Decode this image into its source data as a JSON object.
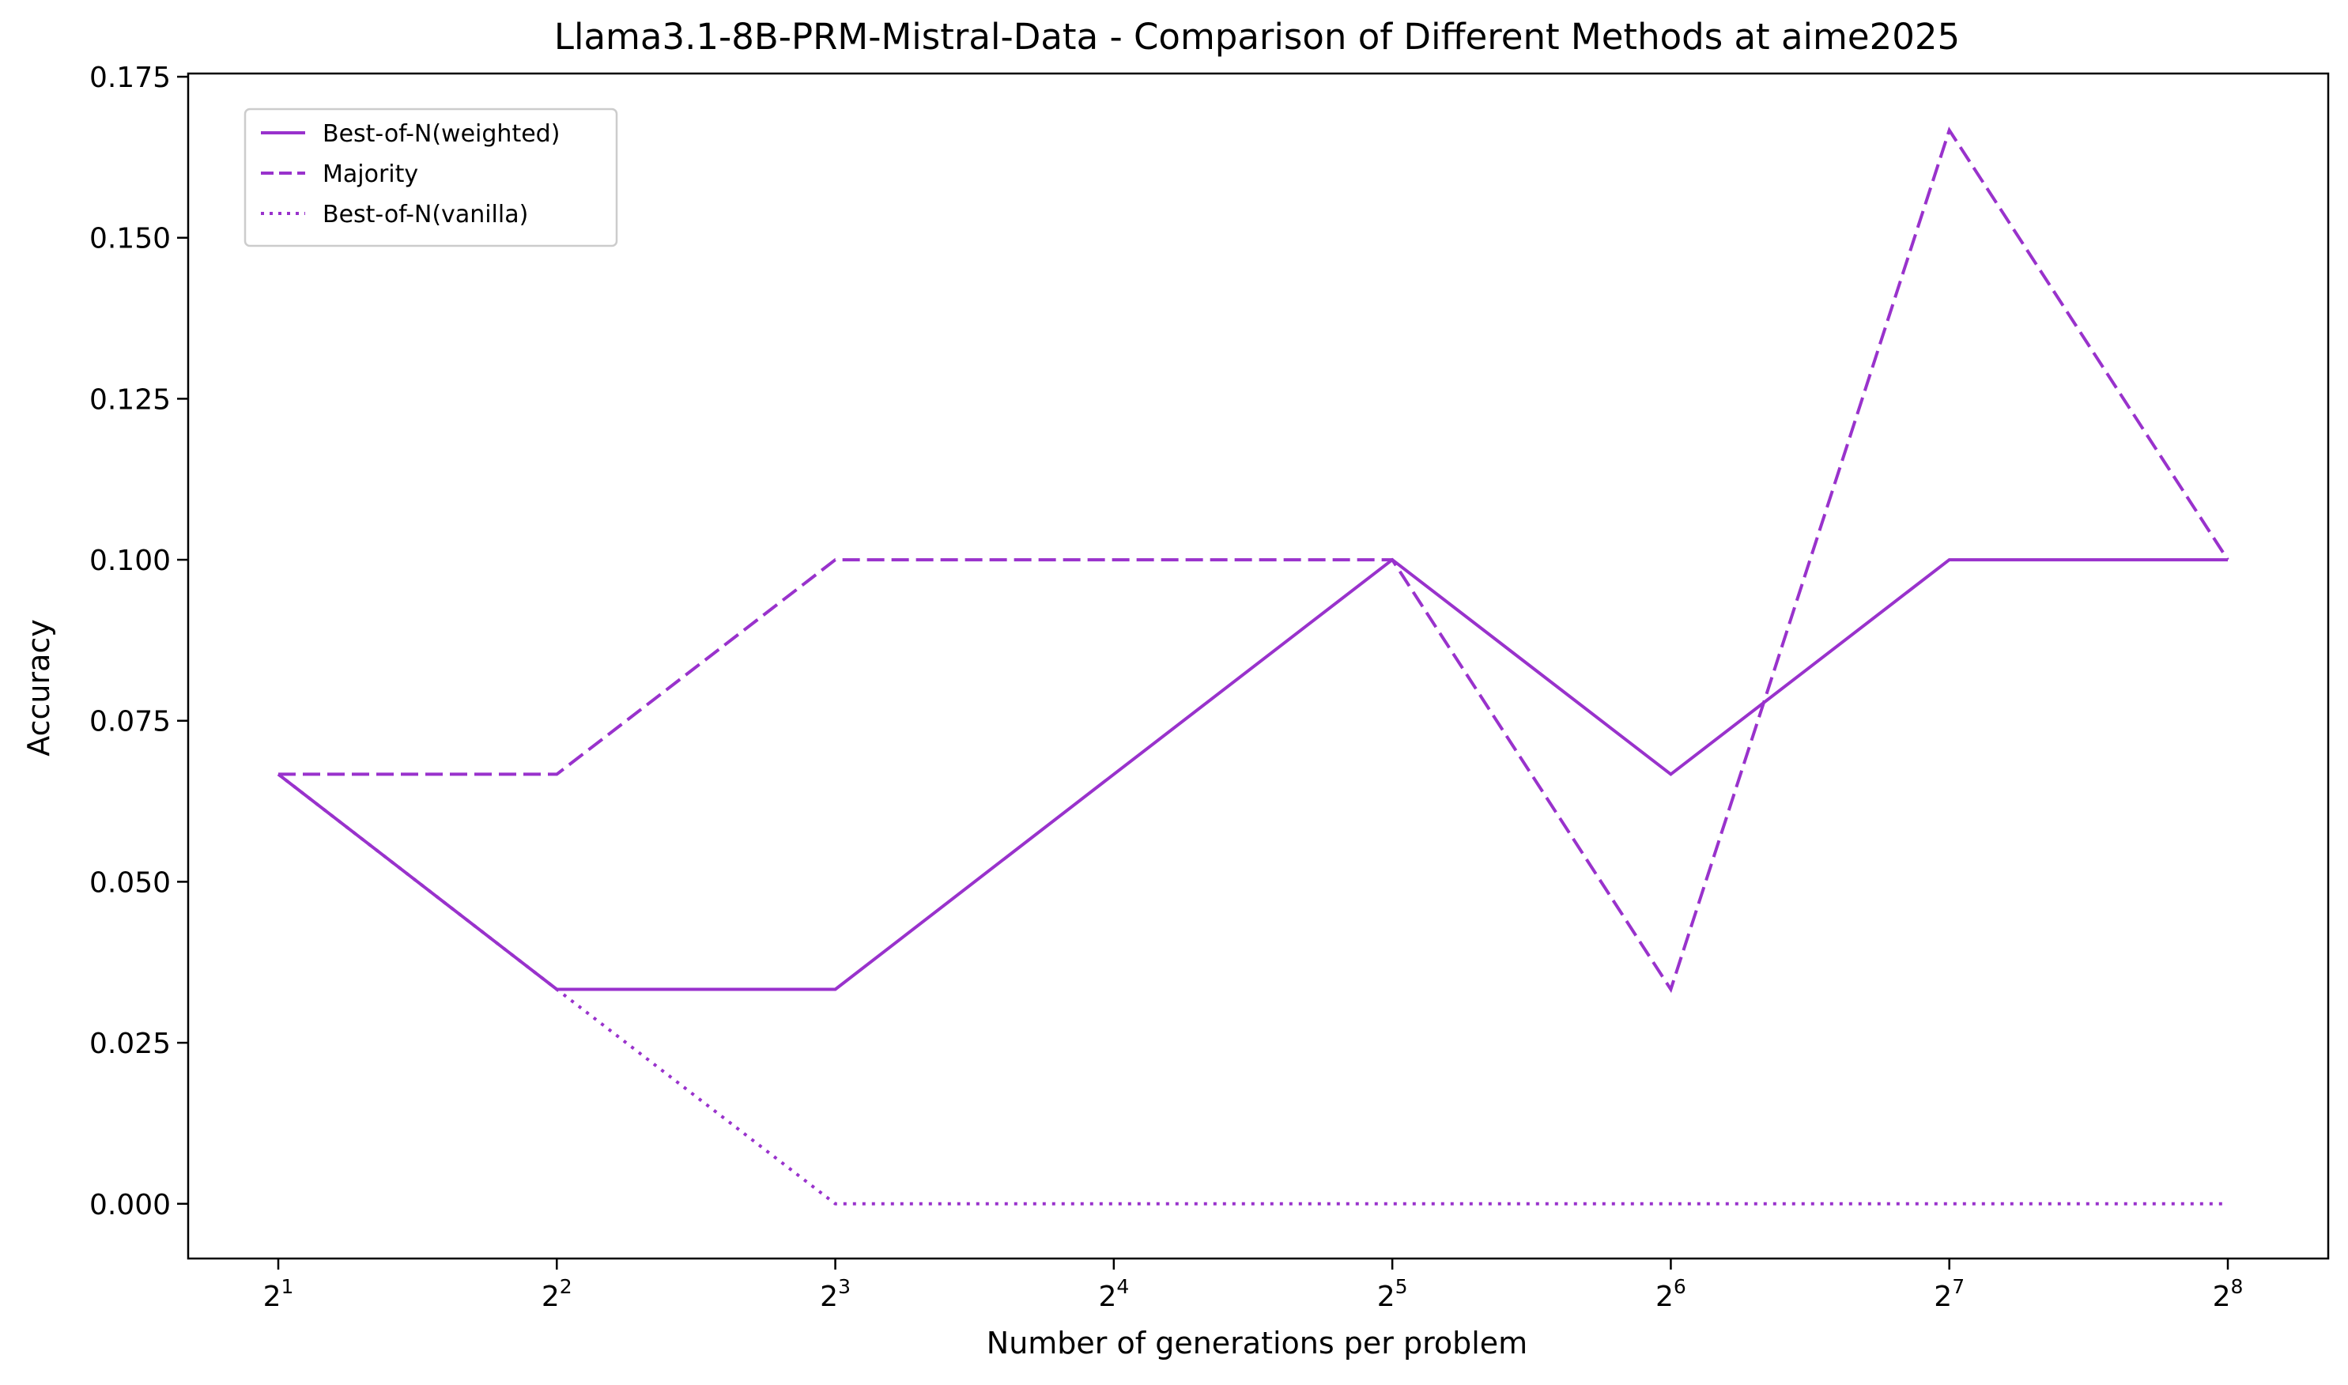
{
  "chart_data": {
    "type": "line",
    "title": "Llama3.1-8B-PRM-Mistral-Data - Comparison of Different Methods at aime2025",
    "xlabel": "Number of generations per problem",
    "ylabel": "Accuracy",
    "x_scale": "log2",
    "x": [
      2,
      4,
      8,
      16,
      32,
      64,
      128,
      256
    ],
    "x_tick_labels": [
      {
        "base": "2",
        "exp": "1"
      },
      {
        "base": "2",
        "exp": "2"
      },
      {
        "base": "2",
        "exp": "3"
      },
      {
        "base": "2",
        "exp": "4"
      },
      {
        "base": "2",
        "exp": "5"
      },
      {
        "base": "2",
        "exp": "6"
      },
      {
        "base": "2",
        "exp": "7"
      },
      {
        "base": "2",
        "exp": "8"
      }
    ],
    "y_ticks": [
      "0.000",
      "0.025",
      "0.050",
      "0.075",
      "0.100",
      "0.125",
      "0.150",
      "0.175"
    ],
    "ylim": [
      -0.0085,
      0.1755
    ],
    "grid": false,
    "legend_position": "top-left",
    "series": [
      {
        "name": "Best-of-N(weighted)",
        "style": "solid",
        "color": "#9932CC",
        "values": [
          0.0667,
          0.0333,
          0.0333,
          0.0667,
          0.1,
          0.0667,
          0.1,
          0.1
        ]
      },
      {
        "name": "Majority",
        "style": "dashed",
        "color": "#9932CC",
        "values": [
          0.0667,
          0.0667,
          0.1,
          0.1,
          0.1,
          0.0333,
          0.1667,
          0.1
        ]
      },
      {
        "name": "Best-of-N(vanilla)",
        "style": "dotted",
        "color": "#9932CC",
        "values": [
          0.0667,
          0.0333,
          0.0,
          0.0,
          0.0,
          0.0,
          0.0,
          0.0
        ]
      }
    ]
  }
}
